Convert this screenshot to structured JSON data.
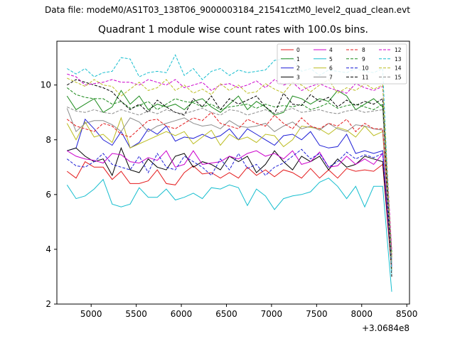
{
  "chart_data": {
    "type": "line",
    "suptitle": "Data file: modeM0/AS1T03_138T06_9000003184_21541cztM0_level2_quad_clean.evt",
    "title": "Quadrant 1 module wise count rates with 100.0s bins.",
    "xlabel": "",
    "ylabel": "",
    "x_offset_label": "+3.0684e8",
    "xlim": [
      4620,
      8530
    ],
    "ylim": [
      2,
      11.6
    ],
    "xticks": [
      5000,
      5500,
      6000,
      6500,
      7000,
      7500,
      8000,
      8500
    ],
    "xtick_labels": [
      "5000",
      "5500",
      "6000",
      "6500",
      "7000",
      "7500",
      "8000",
      "8500"
    ],
    "yticks": [
      2,
      4,
      6,
      8,
      10
    ],
    "ytick_labels": [
      "2",
      "4",
      "6",
      "8",
      "10"
    ],
    "legend_position": "top-right",
    "x": [
      4733,
      4833,
      4933,
      5033,
      5133,
      5233,
      5333,
      5433,
      5533,
      5633,
      5733,
      5833,
      5933,
      6033,
      6133,
      6233,
      6333,
      6433,
      6533,
      6633,
      6733,
      6833,
      6933,
      7033,
      7133,
      7233,
      7333,
      7433,
      7533,
      7633,
      7733,
      7833,
      7933,
      8033,
      8133,
      8233,
      8333
    ],
    "series": [
      {
        "name": "0",
        "color": "#e41a1c",
        "dash": "solid",
        "values": [
          6.85,
          6.6,
          7.2,
          7.0,
          7.0,
          6.55,
          6.85,
          6.4,
          6.4,
          6.5,
          6.9,
          6.4,
          6.35,
          6.8,
          7.05,
          6.75,
          6.8,
          6.6,
          6.8,
          6.6,
          7.0,
          6.7,
          6.9,
          6.65,
          6.9,
          6.8,
          6.6,
          6.95,
          6.6,
          6.9,
          6.6,
          6.95,
          6.85,
          6.9,
          6.85,
          7.1,
          3.2
        ]
      },
      {
        "name": "1",
        "color": "#1b8a1b",
        "dash": "solid",
        "values": [
          9.6,
          9.1,
          9.3,
          9.5,
          9.0,
          9.2,
          9.8,
          9.3,
          9.6,
          9.1,
          9.3,
          9.2,
          9.3,
          9.1,
          9.4,
          9.5,
          9.2,
          9.0,
          9.3,
          9.6,
          9.1,
          9.4,
          9.2,
          8.9,
          9.0,
          9.6,
          9.5,
          9.3,
          9.5,
          9.4,
          9.8,
          9.6,
          9.1,
          9.3,
          9.5,
          9.2,
          3.7
        ]
      },
      {
        "name": "2",
        "color": "#1f1fd6",
        "dash": "solid",
        "values": [
          7.6,
          7.7,
          8.75,
          8.4,
          8.0,
          7.8,
          8.3,
          7.7,
          7.9,
          8.4,
          8.2,
          8.5,
          7.95,
          8.1,
          8.05,
          8.2,
          8.05,
          8.15,
          8.4,
          8.0,
          8.4,
          8.2,
          8.0,
          7.8,
          8.15,
          8.2,
          8.0,
          8.3,
          7.8,
          7.7,
          7.75,
          8.2,
          7.5,
          7.6,
          7.5,
          7.6,
          3.4
        ]
      },
      {
        "name": "3",
        "color": "#000000",
        "dash": "solid",
        "values": [
          7.6,
          7.7,
          7.4,
          7.2,
          7.3,
          6.7,
          7.7,
          6.9,
          6.8,
          7.3,
          7.0,
          6.9,
          7.4,
          7.5,
          7.0,
          7.2,
          7.1,
          6.9,
          7.4,
          7.2,
          7.4,
          6.8,
          7.1,
          7.6,
          7.2,
          6.9,
          7.4,
          7.2,
          7.4,
          6.9,
          7.3,
          7.0,
          7.1,
          7.4,
          7.3,
          7.2,
          3.3
        ]
      },
      {
        "name": "4",
        "color": "#cc00cc",
        "dash": "solid",
        "values": [
          7.6,
          7.4,
          7.3,
          7.25,
          7.15,
          7.5,
          7.45,
          7.2,
          7.15,
          7.35,
          7.25,
          7.6,
          7.0,
          7.1,
          7.6,
          7.1,
          7.15,
          7.2,
          7.4,
          7.3,
          7.5,
          7.6,
          7.4,
          7.5,
          7.3,
          7.6,
          7.1,
          7.2,
          7.55,
          7.0,
          7.05,
          7.4,
          7.1,
          7.3,
          7.1,
          7.5,
          3.35
        ]
      },
      {
        "name": "5",
        "color": "#17becf",
        "dash": "solid",
        "values": [
          6.35,
          5.85,
          5.95,
          6.2,
          6.55,
          5.65,
          5.55,
          5.65,
          6.25,
          5.9,
          5.9,
          6.2,
          5.8,
          5.9,
          6.05,
          5.85,
          6.25,
          6.2,
          6.35,
          6.25,
          5.6,
          6.2,
          5.95,
          5.45,
          5.85,
          5.95,
          6.0,
          6.1,
          6.45,
          6.6,
          6.3,
          5.85,
          6.3,
          5.55,
          6.3,
          6.3,
          2.45
        ]
      },
      {
        "name": "6",
        "color": "#bcbd22",
        "dash": "solid",
        "values": [
          8.6,
          8.0,
          8.65,
          8.1,
          8.2,
          7.9,
          8.8,
          7.7,
          7.85,
          8.0,
          8.15,
          8.3,
          8.15,
          8.3,
          7.85,
          8.1,
          8.35,
          7.8,
          8.2,
          8.0,
          8.1,
          7.9,
          8.2,
          8.15,
          7.75,
          8.0,
          8.5,
          8.45,
          8.4,
          8.2,
          8.45,
          8.35,
          8.1,
          8.5,
          8.15,
          8.3,
          3.25
        ]
      },
      {
        "name": "7",
        "color": "#8c8c8c",
        "dash": "solid",
        "values": [
          9.15,
          8.3,
          8.6,
          8.7,
          8.7,
          8.55,
          8.3,
          8.8,
          8.65,
          8.3,
          8.5,
          8.6,
          8.7,
          8.8,
          8.6,
          8.5,
          8.55,
          8.4,
          8.7,
          8.5,
          8.45,
          8.5,
          8.6,
          8.3,
          8.5,
          8.65,
          8.4,
          8.5,
          8.35,
          8.6,
          8.4,
          8.3,
          8.55,
          8.5,
          8.4,
          8.35,
          3.5
        ]
      },
      {
        "name": "8",
        "color": "#e41a1c",
        "dash": "dashed",
        "values": [
          8.75,
          8.5,
          8.4,
          8.3,
          8.6,
          8.5,
          8.2,
          8.1,
          8.4,
          8.7,
          8.75,
          8.5,
          8.4,
          8.6,
          8.8,
          8.7,
          9.0,
          8.6,
          8.5,
          8.4,
          8.75,
          8.6,
          8.5,
          8.9,
          8.6,
          8.4,
          8.8,
          8.5,
          8.4,
          8.6,
          8.5,
          8.75,
          8.3,
          8.6,
          8.4,
          8.4,
          3.8
        ]
      },
      {
        "name": "9",
        "color": "#1b8a1b",
        "dash": "dashed",
        "values": [
          9.9,
          9.65,
          9.55,
          9.5,
          9.5,
          9.3,
          9.4,
          9.15,
          9.25,
          9.4,
          9.1,
          9.3,
          9.5,
          9.4,
          9.35,
          9.2,
          9.3,
          9.1,
          9.2,
          9.25,
          9.3,
          9.15,
          9.3,
          9.2,
          9.25,
          9.2,
          9.3,
          9.1,
          9.2,
          9.35,
          9.15,
          9.25,
          9.3,
          9.2,
          9.1,
          9.3,
          3.9
        ]
      },
      {
        "name": "10",
        "color": "#1f1fd6",
        "dash": "dashed",
        "values": [
          7.3,
          7.05,
          7.0,
          7.2,
          7.5,
          7.1,
          7.0,
          6.9,
          7.4,
          6.8,
          7.5,
          7.0,
          6.9,
          7.4,
          7.2,
          7.0,
          6.7,
          7.3,
          6.9,
          7.5,
          6.95,
          7.1,
          6.7,
          7.0,
          7.15,
          7.4,
          7.65,
          7.3,
          7.5,
          7.0,
          7.2,
          7.55,
          7.3,
          7.45,
          7.35,
          7.5,
          3.6
        ]
      },
      {
        "name": "11",
        "color": "#000000",
        "dash": "dashed",
        "values": [
          10.0,
          10.2,
          10.1,
          10.0,
          9.9,
          9.75,
          9.4,
          9.1,
          9.3,
          9.0,
          9.45,
          9.2,
          9.0,
          8.9,
          9.5,
          9.2,
          9.6,
          9.1,
          9.5,
          9.3,
          9.45,
          9.6,
          9.2,
          8.95,
          9.7,
          9.3,
          9.25,
          9.65,
          9.4,
          9.55,
          9.2,
          9.45,
          9.25,
          9.4,
          9.3,
          9.5,
          3.0
        ]
      },
      {
        "name": "12",
        "color": "#cc00cc",
        "dash": "dashed",
        "values": [
          10.4,
          10.3,
          10.0,
          10.05,
          10.1,
          10.2,
          10.1,
          10.1,
          10.0,
          10.2,
          10.1,
          10.0,
          10.2,
          9.9,
          10.0,
          10.1,
          9.8,
          10.0,
          10.05,
          9.9,
          10.0,
          10.15,
          9.9,
          10.2,
          10.0,
          10.1,
          9.8,
          9.95,
          10.05,
          9.9,
          9.8,
          9.7,
          10.05,
          9.9,
          9.8,
          9.95,
          3.95
        ]
      },
      {
        "name": "13",
        "color": "#17becf",
        "dash": "dashed",
        "values": [
          10.6,
          10.4,
          10.6,
          10.3,
          10.45,
          10.5,
          11.0,
          10.95,
          10.3,
          10.45,
          10.5,
          10.45,
          11.1,
          10.35,
          10.6,
          10.2,
          10.5,
          10.6,
          10.35,
          10.55,
          10.45,
          10.5,
          10.55,
          10.9,
          10.95,
          11.0,
          10.5,
          10.6,
          10.35,
          10.55,
          10.5,
          10.45,
          10.6,
          10.5,
          10.45,
          10.6,
          3.1
        ]
      },
      {
        "name": "14",
        "color": "#bcbd22",
        "dash": "dashed",
        "values": [
          10.25,
          10.1,
          9.95,
          10.2,
          10.0,
          9.95,
          9.6,
          9.85,
          10.1,
          9.8,
          9.9,
          10.2,
          9.8,
          10.0,
          9.7,
          9.85,
          9.65,
          10.05,
          9.8,
          10.0,
          9.7,
          9.75,
          10.05,
          9.85,
          9.7,
          10.1,
          10.0,
          9.75,
          10.0,
          10.2,
          9.7,
          9.9,
          9.8,
          10.05,
          9.85,
          10.0,
          3.6
        ]
      },
      {
        "name": "15",
        "color": "#8c8c8c",
        "dash": "dashed",
        "values": [
          9.2,
          9.05,
          9.0,
          9.1,
          9.0,
          8.95,
          9.1,
          9.0,
          8.9,
          9.05,
          8.95,
          9.1,
          9.0,
          8.95,
          9.05,
          9.15,
          9.0,
          8.9,
          9.1,
          9.05,
          8.9,
          9.0,
          9.1,
          8.95,
          9.05,
          9.15,
          9.0,
          9.05,
          9.1,
          9.0,
          8.95,
          9.05,
          9.1,
          9.0,
          9.05,
          9.1,
          3.5
        ]
      }
    ]
  }
}
